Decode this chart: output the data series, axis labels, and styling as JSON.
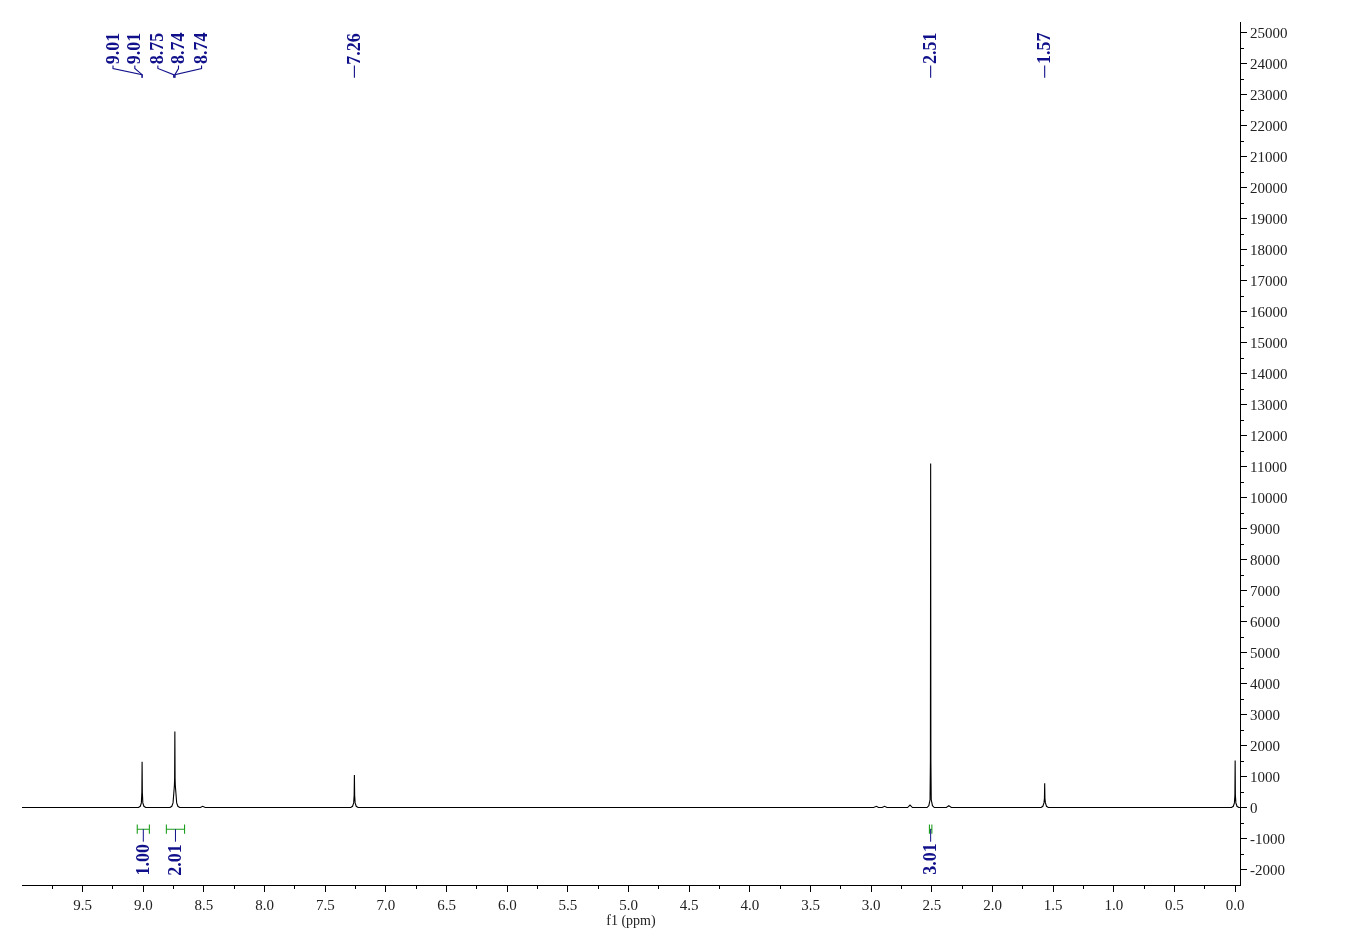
{
  "chart_data": {
    "type": "line",
    "xlabel": "f1 (ppm)",
    "xlim": [
      10.0,
      -0.04
    ],
    "xticks": [
      {
        "value": 9.75,
        "label": null
      },
      9.5,
      {
        "value": 9.25,
        "label": null
      },
      {
        "value": 9,
        "label": "9.0"
      },
      {
        "value": 8.75,
        "label": null
      },
      8.5,
      {
        "value": 8.25,
        "label": null
      },
      {
        "value": 8,
        "label": "8.0"
      },
      {
        "value": 7.75,
        "label": null
      },
      7.5,
      {
        "value": 7.25,
        "label": null
      },
      {
        "value": 7,
        "label": "7.0"
      },
      {
        "value": 6.75,
        "label": null
      },
      6.5,
      {
        "value": 6.25,
        "label": null
      },
      {
        "value": 6,
        "label": "6.0"
      },
      {
        "value": 5.75,
        "label": null
      },
      5.5,
      {
        "value": 5.25,
        "label": null
      },
      {
        "value": 5,
        "label": "5.0"
      },
      {
        "value": 4.75,
        "label": null
      },
      4.5,
      {
        "value": 4.25,
        "label": null
      },
      {
        "value": 4,
        "label": "4.0"
      },
      {
        "value": 3.75,
        "label": null
      },
      3.5,
      {
        "value": 3.25,
        "label": null
      },
      {
        "value": 3,
        "label": "3.0"
      },
      {
        "value": 2.75,
        "label": null
      },
      2.5,
      {
        "value": 2.25,
        "label": null
      },
      {
        "value": 2,
        "label": "2.0"
      },
      {
        "value": 1.75,
        "label": null
      },
      1.5,
      {
        "value": 1.25,
        "label": null
      },
      {
        "value": 1,
        "label": "1.0"
      },
      {
        "value": 0.75,
        "label": null
      },
      0.5,
      {
        "value": 0.25,
        "label": null
      },
      {
        "value": 0,
        "label": "0.0"
      }
    ],
    "ylim": [
      -2500,
      25350
    ],
    "yticks": [
      -2000,
      {
        "value": -1500,
        "label": null
      },
      -1000,
      {
        "value": -500,
        "label": null
      },
      0,
      {
        "value": 500,
        "label": null
      },
      1000,
      {
        "value": 1500,
        "label": null
      },
      2000,
      {
        "value": 2500,
        "label": null
      },
      3000,
      {
        "value": 3500,
        "label": null
      },
      4000,
      {
        "value": 4500,
        "label": null
      },
      5000,
      {
        "value": 5500,
        "label": null
      },
      6000,
      {
        "value": 6500,
        "label": null
      },
      7000,
      {
        "value": 7500,
        "label": null
      },
      8000,
      {
        "value": 8500,
        "label": null
      },
      9000,
      {
        "value": 9500,
        "label": null
      },
      10000,
      {
        "value": 10500,
        "label": null
      },
      11000,
      {
        "value": 11500,
        "label": null
      },
      12000,
      {
        "value": 12500,
        "label": null
      },
      13000,
      {
        "value": 13500,
        "label": null
      },
      14000,
      {
        "value": 14500,
        "label": null
      },
      15000,
      {
        "value": 15500,
        "label": null
      },
      16000,
      {
        "value": 16500,
        "label": null
      },
      17000,
      {
        "value": 17500,
        "label": null
      },
      18000,
      {
        "value": 18500,
        "label": null
      },
      19000,
      {
        "value": 19500,
        "label": null
      },
      20000,
      {
        "value": 20500,
        "label": null
      },
      21000,
      {
        "value": 21500,
        "label": null
      },
      22000,
      {
        "value": 22500,
        "label": null
      },
      23000,
      {
        "value": 23500,
        "label": null
      },
      24000,
      {
        "value": 24500,
        "label": null
      },
      25000
    ],
    "series": [
      {
        "color": "#000000",
        "x": [
          10.0,
          9.04,
          9.025,
          9.016,
          9.012,
          9.01,
          9.008,
          9.004,
          8.995,
          8.98,
          8.78,
          8.765,
          8.755,
          8.748,
          8.744,
          8.742,
          8.74,
          8.738,
          8.736,
          8.732,
          8.725,
          8.715,
          8.7,
          8.53,
          8.51,
          8.49,
          7.29,
          7.275,
          7.266,
          7.262,
          7.26,
          7.258,
          7.254,
          7.245,
          7.23,
          2.98,
          2.957,
          2.94,
          2.91,
          2.89,
          2.87,
          2.7,
          2.68,
          2.66,
          2.54,
          2.525,
          2.515,
          2.512,
          2.51,
          2.508,
          2.505,
          2.495,
          2.48,
          2.38,
          2.36,
          2.34,
          1.6,
          1.585,
          1.576,
          1.572,
          1.57,
          1.568,
          1.564,
          1.555,
          1.54,
          0.03,
          0.015,
          0.006,
          0.002,
          0,
          -0.002,
          -0.006,
          -0.015,
          -0.03,
          -0.04
        ],
        "values": [
          0,
          0,
          40,
          150,
          500,
          1480,
          500,
          150,
          40,
          0,
          0,
          40,
          150,
          500,
          700,
          900,
          2450,
          900,
          700,
          500,
          150,
          40,
          0,
          0,
          40,
          0,
          0,
          40,
          150,
          400,
          1050,
          400,
          150,
          40,
          0,
          0,
          40,
          0,
          0,
          40,
          0,
          0,
          80,
          0,
          0,
          60,
          250,
          1500,
          11100,
          1500,
          250,
          60,
          0,
          0,
          60,
          0,
          0,
          40,
          150,
          300,
          780,
          300,
          150,
          40,
          0,
          0,
          40,
          150,
          400,
          1520,
          400,
          150,
          40,
          0,
          0
        ]
      },
      {
        "color": "#1f9f1f",
        "x": [
          9.05,
          9.05,
          9.05,
          8.95,
          8.95,
          8.95
        ],
        "values": [
          -850,
          -550,
          -700,
          -700,
          -850,
          -550
        ]
      },
      {
        "color": "#1f9f1f",
        "x": [
          8.81,
          8.81,
          8.81,
          8.66,
          8.66,
          8.66
        ],
        "values": [
          -850,
          -550,
          -700,
          -700,
          -850,
          -550
        ]
      },
      {
        "color": "#1f9f1f",
        "x": [
          2.52,
          2.52,
          2.52,
          2.5,
          2.5,
          2.5
        ],
        "values": [
          -850,
          -550,
          -700,
          -700,
          -850,
          -550
        ]
      },
      {
        "color": "#10108a",
        "x": [
          9.01,
          9.01,
          9.25,
          9.25
        ],
        "values": [
          23550,
          23650,
          23850,
          23950
        ]
      },
      {
        "color": "#10108a",
        "x": [
          9.01,
          9.01,
          9.07,
          9.07
        ],
        "values": [
          23550,
          23650,
          23850,
          23950
        ]
      },
      {
        "color": "#10108a",
        "x": [
          8.75,
          8.75,
          8.88,
          8.88
        ],
        "values": [
          23550,
          23650,
          23850,
          23950
        ]
      },
      {
        "color": "#10108a",
        "x": [
          8.74,
          8.74,
          8.71,
          8.71
        ],
        "values": [
          23550,
          23650,
          23850,
          23950
        ]
      },
      {
        "color": "#10108a",
        "x": [
          8.74,
          8.74,
          8.52,
          8.52
        ],
        "values": [
          23550,
          23650,
          23850,
          23950
        ]
      },
      {
        "color": "#10108a",
        "x": [
          7.26,
          7.26
        ],
        "values": [
          23550,
          23950
        ]
      },
      {
        "color": "#10108a",
        "x": [
          2.51,
          2.51
        ],
        "values": [
          23550,
          23950
        ]
      },
      {
        "color": "#10108a",
        "x": [
          1.57,
          1.57
        ],
        "values": [
          23550,
          23950
        ]
      }
    ],
    "annotations": [
      {
        "text": "9.01",
        "x": 9.25,
        "y": 23950
      },
      {
        "text": "9.01",
        "x": 9.07,
        "y": 23950
      },
      {
        "text": "8.75",
        "x": 8.88,
        "y": 23950
      },
      {
        "text": "8.74",
        "x": 8.71,
        "y": 23950
      },
      {
        "text": "8.74",
        "x": 8.52,
        "y": 23950
      },
      {
        "text": "7.26",
        "x": 7.26,
        "y": 23950
      },
      {
        "text": "2.51",
        "x": 2.51,
        "y": 23950
      },
      {
        "text": "1.57",
        "x": 1.57,
        "y": 23950
      },
      {
        "text": "1.00",
        "x": 9.0,
        "y": -700
      },
      {
        "text": "2.01",
        "x": 8.735,
        "y": -700
      },
      {
        "text": "3.01",
        "x": 2.51,
        "y": -700
      }
    ]
  }
}
